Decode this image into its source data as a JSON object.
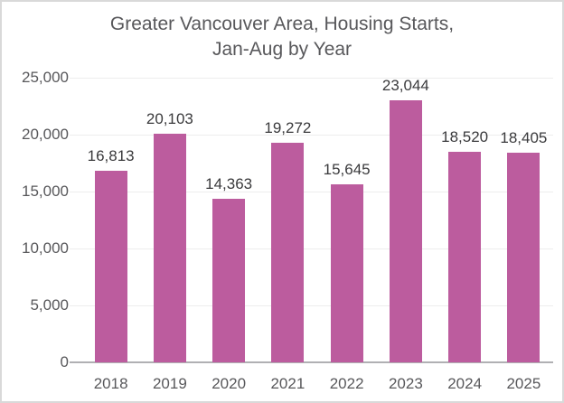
{
  "chart": {
    "title_lines": [
      "Greater Vancouver Area, Housing Starts,",
      "Jan-Aug by Year"
    ]
  },
  "chart_data": {
    "type": "bar",
    "title": "Greater Vancouver Area, Housing Starts, Jan-Aug by Year",
    "categories": [
      "2018",
      "2019",
      "2020",
      "2021",
      "2022",
      "2023",
      "2024",
      "2025"
    ],
    "values": [
      16813,
      20103,
      14363,
      19272,
      15645,
      23044,
      18520,
      18405
    ],
    "value_labels": [
      "16,813",
      "20,103",
      "14,363",
      "19,272",
      "15,645",
      "23,044",
      "18,520",
      "18,405"
    ],
    "xlabel": "",
    "ylabel": "",
    "ylim": [
      0,
      25000
    ],
    "yticks": [
      0,
      5000,
      10000,
      15000,
      20000,
      25000
    ],
    "ytick_labels": [
      "0",
      "5,000",
      "10,000",
      "15,000",
      "20,000",
      "25,000"
    ],
    "grid": "horizontal",
    "legend": "none"
  },
  "colors": {
    "bar": "#bc5c9e",
    "title_text": "#58585b",
    "axis_text": "#58585b",
    "value_label_text": "#3a3a3c",
    "gridline": "#ededed",
    "baseline": "#b0b0b3",
    "frame_border": "#d9d9d9",
    "background": "#ffffff"
  }
}
